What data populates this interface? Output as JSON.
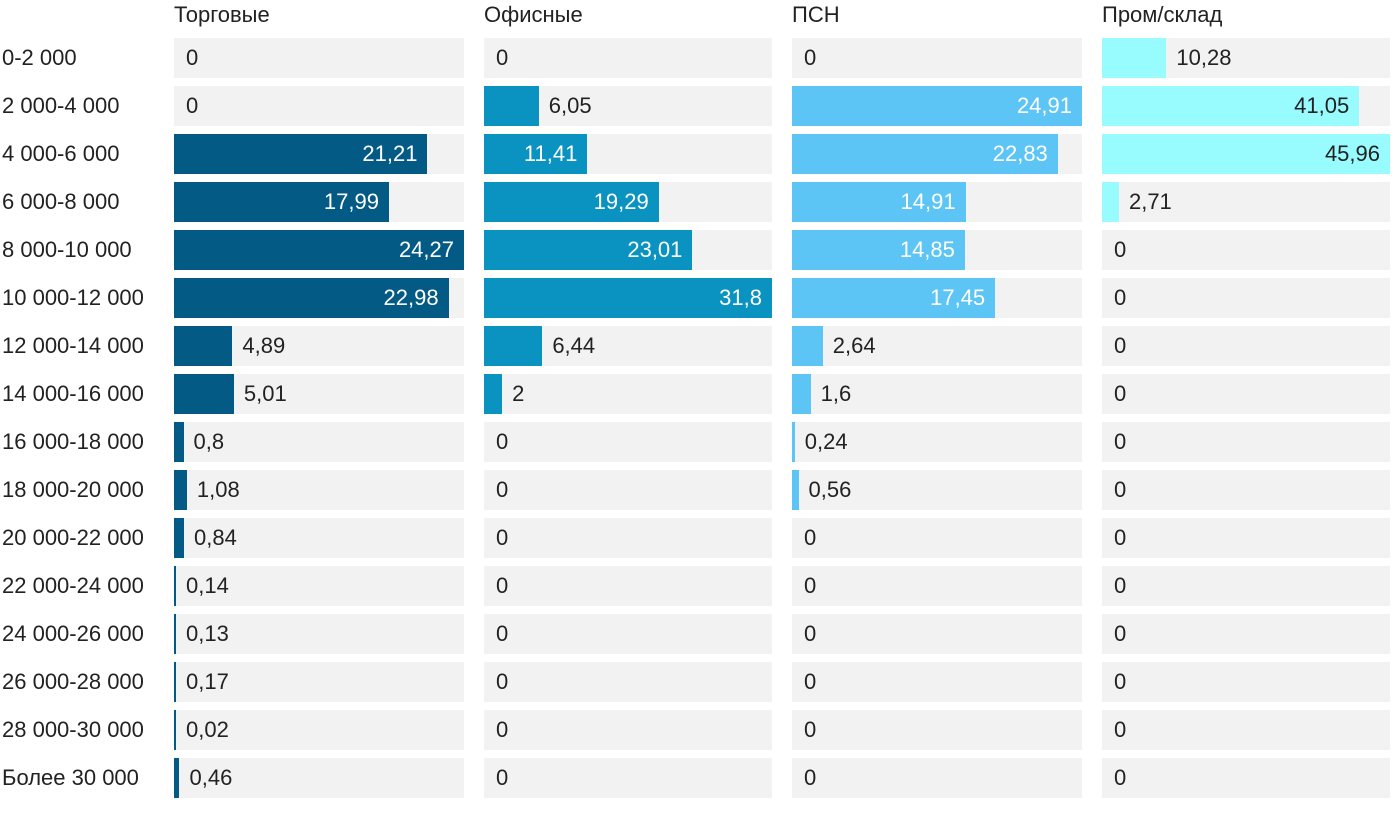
{
  "chart_data": {
    "type": "bar",
    "orientation": "horizontal",
    "layout": "small-multiples",
    "categories": [
      "0-2 000",
      "2 000-4 000",
      "4 000-6 000",
      "6 000-8 000",
      "8 000-10 000",
      "10 000-12 000",
      "12 000-14 000",
      "14 000-16 000",
      "16 000-18 000",
      "18 000-20 000",
      "20 000-22 000",
      "22 000-24 000",
      "24 000-26 000",
      "26 000-28 000",
      "28 000-30 000",
      "Более 30 000"
    ],
    "series": [
      {
        "name": "Торговые",
        "color": "#035b85",
        "values": [
          0,
          0,
          21.21,
          17.99,
          24.27,
          22.98,
          4.89,
          5.01,
          0.8,
          1.08,
          0.84,
          0.14,
          0.13,
          0.17,
          0.02,
          0.46
        ],
        "labels": [
          "0",
          "0",
          "21,21",
          "17,99",
          "24,27",
          "22,98",
          "4,89",
          "5,01",
          "0,8",
          "1,08",
          "0,84",
          "0,14",
          "0,13",
          "0,17",
          "0,02",
          "0,46"
        ]
      },
      {
        "name": "Офисные",
        "color": "#0a93c0",
        "values": [
          0,
          6.05,
          11.41,
          19.29,
          23.01,
          31.8,
          6.44,
          2,
          0,
          0,
          0,
          0,
          0,
          0,
          0,
          0
        ],
        "labels": [
          "0",
          "6,05",
          "11,41",
          "19,29",
          "23,01",
          "31,8",
          "6,44",
          "2",
          "0",
          "0",
          "0",
          "0",
          "0",
          "0",
          "0",
          "0"
        ]
      },
      {
        "name": "ПСН",
        "color": "#5cc5f5",
        "values": [
          0,
          24.91,
          22.83,
          14.91,
          14.85,
          17.45,
          2.64,
          1.6,
          0.24,
          0.56,
          0,
          0,
          0,
          0,
          0,
          0
        ],
        "labels": [
          "0",
          "24,91",
          "22,83",
          "14,91",
          "14,85",
          "17,45",
          "2,64",
          "1,6",
          "0,24",
          "0,56",
          "0",
          "0",
          "0",
          "0",
          "0",
          "0"
        ]
      },
      {
        "name": "Пром/склад",
        "color": "#98fcff",
        "values": [
          10.28,
          41.05,
          45.96,
          2.71,
          0,
          0,
          0,
          0,
          0,
          0,
          0,
          0,
          0,
          0,
          0,
          0
        ],
        "labels": [
          "10,28",
          "41,05",
          "45,96",
          "2,71",
          "0",
          "0",
          "0",
          "0",
          "0",
          "0",
          "0",
          "0",
          "0",
          "0",
          "0",
          "0"
        ]
      }
    ],
    "grid": false,
    "legend": "none"
  }
}
